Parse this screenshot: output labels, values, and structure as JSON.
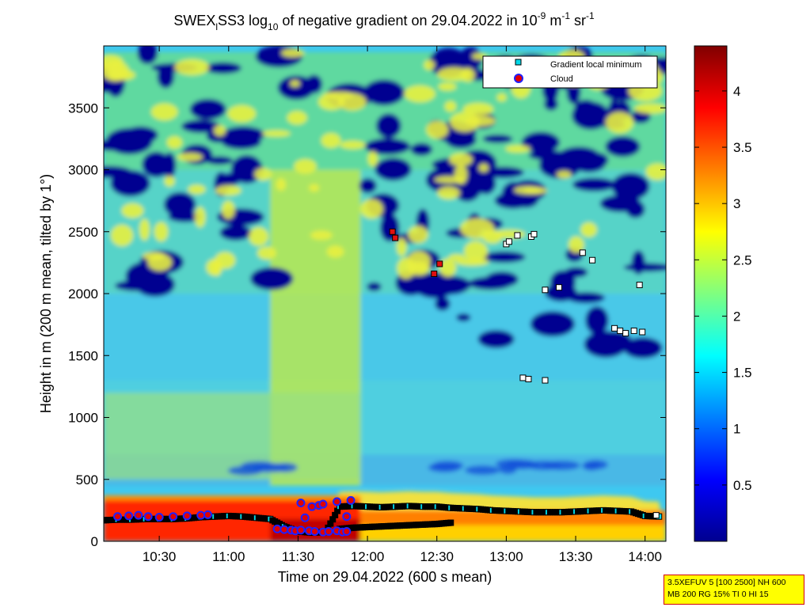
{
  "title": {
    "prefix": "SWEX",
    "prefix_sub": "l",
    "station": "SS3 log",
    "log_base": "10",
    "text": " of negative gradient on 29.04.2022 in 10",
    "exp1": "-9",
    "unit1": " m",
    "exp2": "-1",
    "unit2": " sr",
    "exp3": "-1"
  },
  "xlabel": "Time on 29.04.2022 (600 s mean)",
  "ylabel": "Height in m (200 m mean, tilted by 1°)",
  "info_box": {
    "line1": "3.5XEFUV 5 [100 2500] NH 600",
    "line2": "MB 200 RG 15% TI 0 HI 15"
  },
  "colors": {
    "gradient_marker": "#00d8e8",
    "cloud_marker_fill": "#e00000",
    "cloud_marker_edge": "#2020ff",
    "background_plot": "#000090"
  },
  "chart_data": {
    "type": "heatmap",
    "colormap": "jet",
    "x_range_hours": [
      10.1,
      14.15
    ],
    "ylim": [
      0,
      4000
    ],
    "clim": [
      0,
      4.4
    ],
    "x_ticks": [
      {
        "value": 10.5,
        "label": "10:30"
      },
      {
        "value": 11.0,
        "label": "11:00"
      },
      {
        "value": 11.5,
        "label": "11:30"
      },
      {
        "value": 12.0,
        "label": "12:00"
      },
      {
        "value": 12.5,
        "label": "12:30"
      },
      {
        "value": 13.0,
        "label": "13:00"
      },
      {
        "value": 13.5,
        "label": "13:30"
      },
      {
        "value": 14.0,
        "label": "14:00"
      }
    ],
    "y_ticks": [
      0,
      500,
      1000,
      1500,
      2000,
      2500,
      3000,
      3500
    ],
    "colorbar_ticks": [
      0.5,
      1,
      1.5,
      2,
      2.5,
      3,
      3.5,
      4
    ],
    "legend": {
      "position": "top-right",
      "entries": [
        {
          "label": "Gradient local minimum",
          "marker": "square"
        },
        {
          "label": "Cloud",
          "marker": "circle"
        }
      ]
    },
    "gradient_minima_boundary_layer": {
      "x_hours": [
        10.1,
        10.2,
        10.3,
        10.4,
        10.5,
        10.6,
        10.7,
        10.8,
        10.9,
        11.0,
        11.1,
        11.2,
        11.3,
        11.4,
        11.5,
        11.6,
        11.7,
        11.8,
        11.9,
        12.0,
        12.1,
        12.2,
        12.3,
        12.4,
        12.5,
        12.6,
        12.7,
        12.8,
        12.9,
        13.0,
        13.1,
        13.2,
        13.3,
        13.4,
        13.5,
        13.6,
        13.7,
        13.8,
        13.9,
        14.0,
        14.1
      ],
      "y_m": [
        170,
        175,
        175,
        180,
        180,
        180,
        185,
        195,
        200,
        205,
        200,
        190,
        180,
        120,
        80,
        70,
        75,
        280,
        285,
        280,
        275,
        280,
        285,
        280,
        280,
        270,
        265,
        260,
        250,
        245,
        240,
        235,
        235,
        235,
        240,
        245,
        250,
        245,
        240,
        205,
        200
      ]
    },
    "gradient_minima_lower_layer": {
      "x_hours": [
        11.8,
        11.9,
        12.0,
        12.1,
        12.2,
        12.3,
        12.4,
        12.5,
        12.6
      ],
      "y_m": [
        100,
        110,
        115,
        120,
        125,
        130,
        135,
        140,
        150
      ]
    },
    "gradient_minima_upper": {
      "x": [
        13.0,
        13.02,
        13.08,
        13.18,
        13.2,
        13.28,
        13.38,
        13.55,
        13.62,
        13.78,
        13.82,
        13.86,
        13.92,
        13.96,
        13.98,
        13.28,
        13.12,
        13.16,
        14.08
      ],
      "y": [
        2400,
        2420,
        2470,
        2460,
        2480,
        2030,
        2050,
        2330,
        2270,
        1720,
        1700,
        1680,
        1700,
        2070,
        1690,
        1300,
        1320,
        1310,
        210
      ]
    },
    "gradient_minima_red": {
      "x": [
        12.18,
        12.2,
        12.48,
        12.52
      ],
      "y": [
        2500,
        2450,
        2160,
        2240
      ]
    },
    "clouds": {
      "x": [
        10.2,
        10.28,
        10.35,
        10.42,
        10.5,
        10.6,
        10.7,
        10.8,
        10.85,
        11.35,
        11.4,
        11.45,
        11.48,
        11.52,
        11.58,
        11.62,
        11.68,
        11.72,
        11.78,
        11.82,
        11.85,
        11.52,
        11.55,
        11.6,
        11.65,
        11.68,
        11.78,
        11.85,
        11.88
      ],
      "y": [
        200,
        205,
        210,
        200,
        195,
        200,
        205,
        210,
        215,
        100,
        95,
        90,
        85,
        90,
        85,
        80,
        75,
        80,
        85,
        75,
        80,
        310,
        190,
        280,
        290,
        300,
        320,
        200,
        330
      ]
    }
  }
}
